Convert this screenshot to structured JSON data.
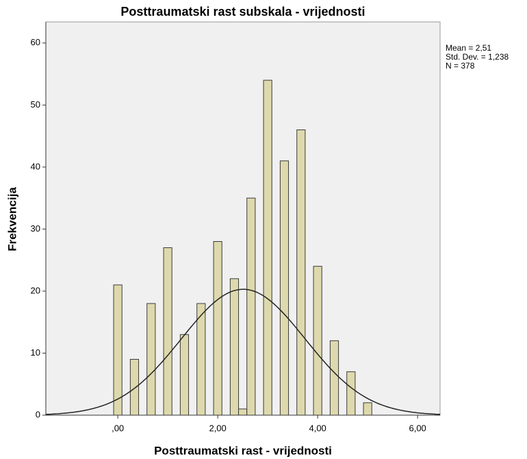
{
  "chart_data": {
    "type": "histogram",
    "title": "Posttraumatski rast subskala - vrijednosti",
    "x_label": "Posttraumatski rast - vrijednosti",
    "y_label": "Frekvencija",
    "bins": [
      -0.0833,
      0.0833,
      0.25,
      0.4167,
      0.5833,
      0.75,
      0.9167,
      1.0833,
      1.25,
      1.4167,
      1.5833,
      1.75,
      1.9167,
      2.0833,
      2.25,
      2.4167,
      2.5833,
      2.75,
      2.9167,
      3.0833,
      3.25,
      3.4167,
      3.5833,
      3.75,
      3.9167,
      4.0833,
      4.25,
      4.4167,
      4.5833,
      4.75,
      4.9167,
      5.0833
    ],
    "values": [
      21,
      0,
      9,
      0,
      18,
      0,
      27,
      0,
      13,
      0,
      18,
      0,
      28,
      0,
      22,
      1,
      35,
      0,
      54,
      0,
      41,
      0,
      46,
      0,
      24,
      0,
      12,
      0,
      7,
      0,
      2
    ],
    "color": "#ded9ad",
    "xlim": [
      -1.44,
      6.45
    ],
    "ylim": [
      0,
      63.4
    ],
    "xticks": [
      {
        "value": 0,
        "label": ",00"
      },
      {
        "value": 2,
        "label": "2,00"
      },
      {
        "value": 4,
        "label": "4,00"
      },
      {
        "value": 6,
        "label": "6,00"
      }
    ],
    "yticks": [
      0,
      10,
      20,
      30,
      40,
      50,
      60
    ],
    "normal_curve": {
      "mean": 2.51,
      "sd": 1.238,
      "n": 378,
      "labels": [
        "Mean = 2,51",
        "Std. Dev. = 1,238",
        "N = 378"
      ]
    }
  }
}
